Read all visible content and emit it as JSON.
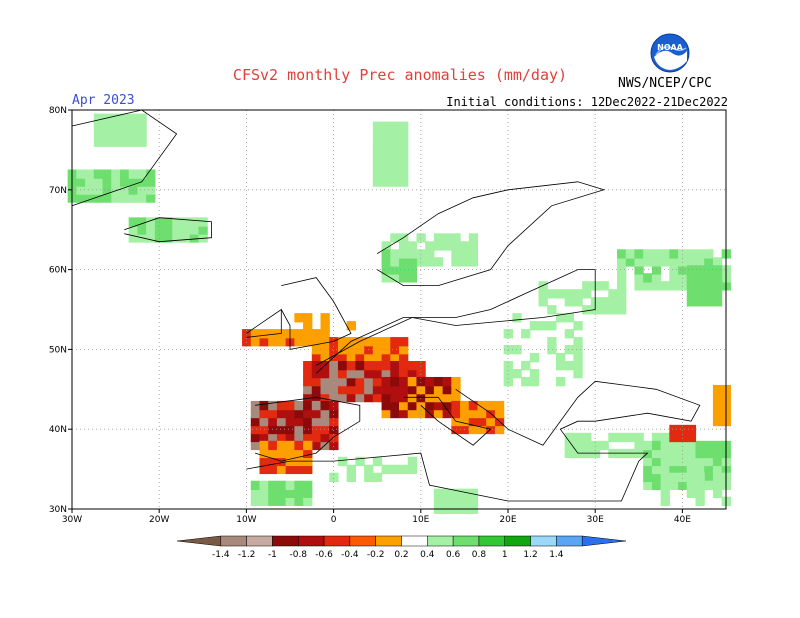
{
  "header": {
    "title": "CFSv2 monthly Prec anomalies (mm/day)",
    "valid_month": "Apr 2023",
    "initial_conditions": "Initial conditions: 12Dec2022-21Dec2022",
    "organization": "NWS/NCEP/CPC",
    "logo_icon": "noaa-logo-icon",
    "logo_text": "NOAA"
  },
  "map": {
    "lon_range": [
      -30,
      45
    ],
    "lat_range": [
      30,
      80
    ],
    "lon_ticks": [
      "30W",
      "20W",
      "10W",
      "0",
      "10E",
      "20E",
      "30E",
      "40E"
    ],
    "lat_ticks": [
      "30N",
      "40N",
      "50N",
      "60N",
      "70N",
      "80N"
    ]
  },
  "colorbar": {
    "labels": [
      "-1.4",
      "-1.2",
      "-1",
      "-0.8",
      "-0.6",
      "-0.4",
      "-0.2",
      "0.2",
      "0.4",
      "0.6",
      "0.8",
      "1",
      "1.2",
      "1.4"
    ],
    "colors": [
      "#7a5a44",
      "#a88a7c",
      "#c7aaa2",
      "#8c0a0a",
      "#b00f0f",
      "#e22a10",
      "#fa5a00",
      "#fca000",
      "#ffffff",
      "#a4f0a4",
      "#6edf6e",
      "#34c734",
      "#10a610",
      "#9ad8f8",
      "#5aa6f4",
      "#2c6ef0"
    ]
  }
}
